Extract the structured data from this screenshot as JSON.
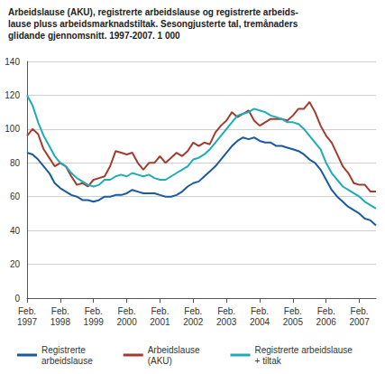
{
  "chart_data": {
    "type": "line",
    "title": "Arbeidslause (AKU), registrerte arbeidslause og registrerte arbeids-\nlause pluss arbeidsmarknadstiltak. Sesongjusterte tal, tremånaders\nglidande gjennomsnitt. 1997-2007. 1 000",
    "categories": [
      "Feb.\n1997",
      null,
      null,
      null,
      null,
      null,
      "Feb.\n1998",
      null,
      null,
      null,
      null,
      null,
      "Feb.\n1999",
      null,
      null,
      null,
      null,
      null,
      "Feb.\n2000",
      null,
      null,
      null,
      null,
      null,
      "Feb.\n2001",
      null,
      null,
      null,
      null,
      null,
      "Feb.\n2002",
      null,
      null,
      null,
      null,
      null,
      "Feb.\n2003",
      null,
      null,
      null,
      null,
      null,
      "Feb.\n2004",
      null,
      null,
      null,
      null,
      null,
      "Feb.\n2005",
      null,
      null,
      null,
      null,
      null,
      "Feb.\n2006",
      null,
      null,
      null,
      null,
      null,
      "Feb.\n2007",
      null,
      null,
      null
    ],
    "series": [
      {
        "name": "Registrerte\narbeidslause",
        "color": "#1a5aa0",
        "values": [
          86,
          85,
          82,
          78,
          74,
          68,
          65,
          63,
          61,
          60,
          58,
          58,
          57,
          58,
          60,
          60,
          61,
          61,
          62,
          64,
          63,
          62,
          62,
          62,
          61,
          60,
          60,
          61,
          63,
          66,
          68,
          69,
          72,
          75,
          78,
          82,
          86,
          90,
          93,
          95,
          94,
          95,
          93,
          92,
          92,
          90,
          90,
          89,
          88,
          87,
          85,
          82,
          80,
          76,
          70,
          64,
          60,
          57,
          54,
          52,
          50,
          47,
          46,
          43
        ]
      },
      {
        "name": "Arbeidslause\n(AKU)",
        "color": "#a53b2e",
        "values": [
          96,
          100,
          97,
          88,
          83,
          78,
          80,
          78,
          72,
          67,
          68,
          66,
          70,
          71,
          72,
          78,
          87,
          86,
          85,
          86,
          80,
          76,
          80,
          80,
          84,
          80,
          83,
          86,
          84,
          87,
          92,
          90,
          92,
          91,
          98,
          102,
          105,
          110,
          107,
          109,
          111,
          105,
          102,
          104,
          106,
          106,
          106,
          105,
          108,
          112,
          112,
          116,
          110,
          102,
          96,
          92,
          85,
          78,
          74,
          68,
          67,
          67,
          63,
          63
        ]
      },
      {
        "name": "Registrerte arbeidslause\n+ tiltak",
        "color": "#1cadb8",
        "values": [
          120,
          114,
          104,
          96,
          90,
          84,
          80,
          78,
          74,
          71,
          69,
          67,
          66,
          67,
          70,
          70,
          72,
          73,
          72,
          74,
          73,
          72,
          73,
          71,
          70,
          70,
          72,
          74,
          76,
          78,
          82,
          83,
          85,
          88,
          92,
          96,
          100,
          104,
          108,
          109,
          110,
          112,
          111,
          110,
          108,
          107,
          106,
          104,
          104,
          103,
          100,
          96,
          92,
          88,
          80,
          74,
          70,
          66,
          64,
          62,
          60,
          57,
          55,
          53
        ]
      }
    ],
    "ylim": [
      0,
      140
    ],
    "yticks": [
      0,
      20,
      40,
      60,
      80,
      100,
      120,
      140
    ],
    "grid": true,
    "legend": "bottom"
  }
}
